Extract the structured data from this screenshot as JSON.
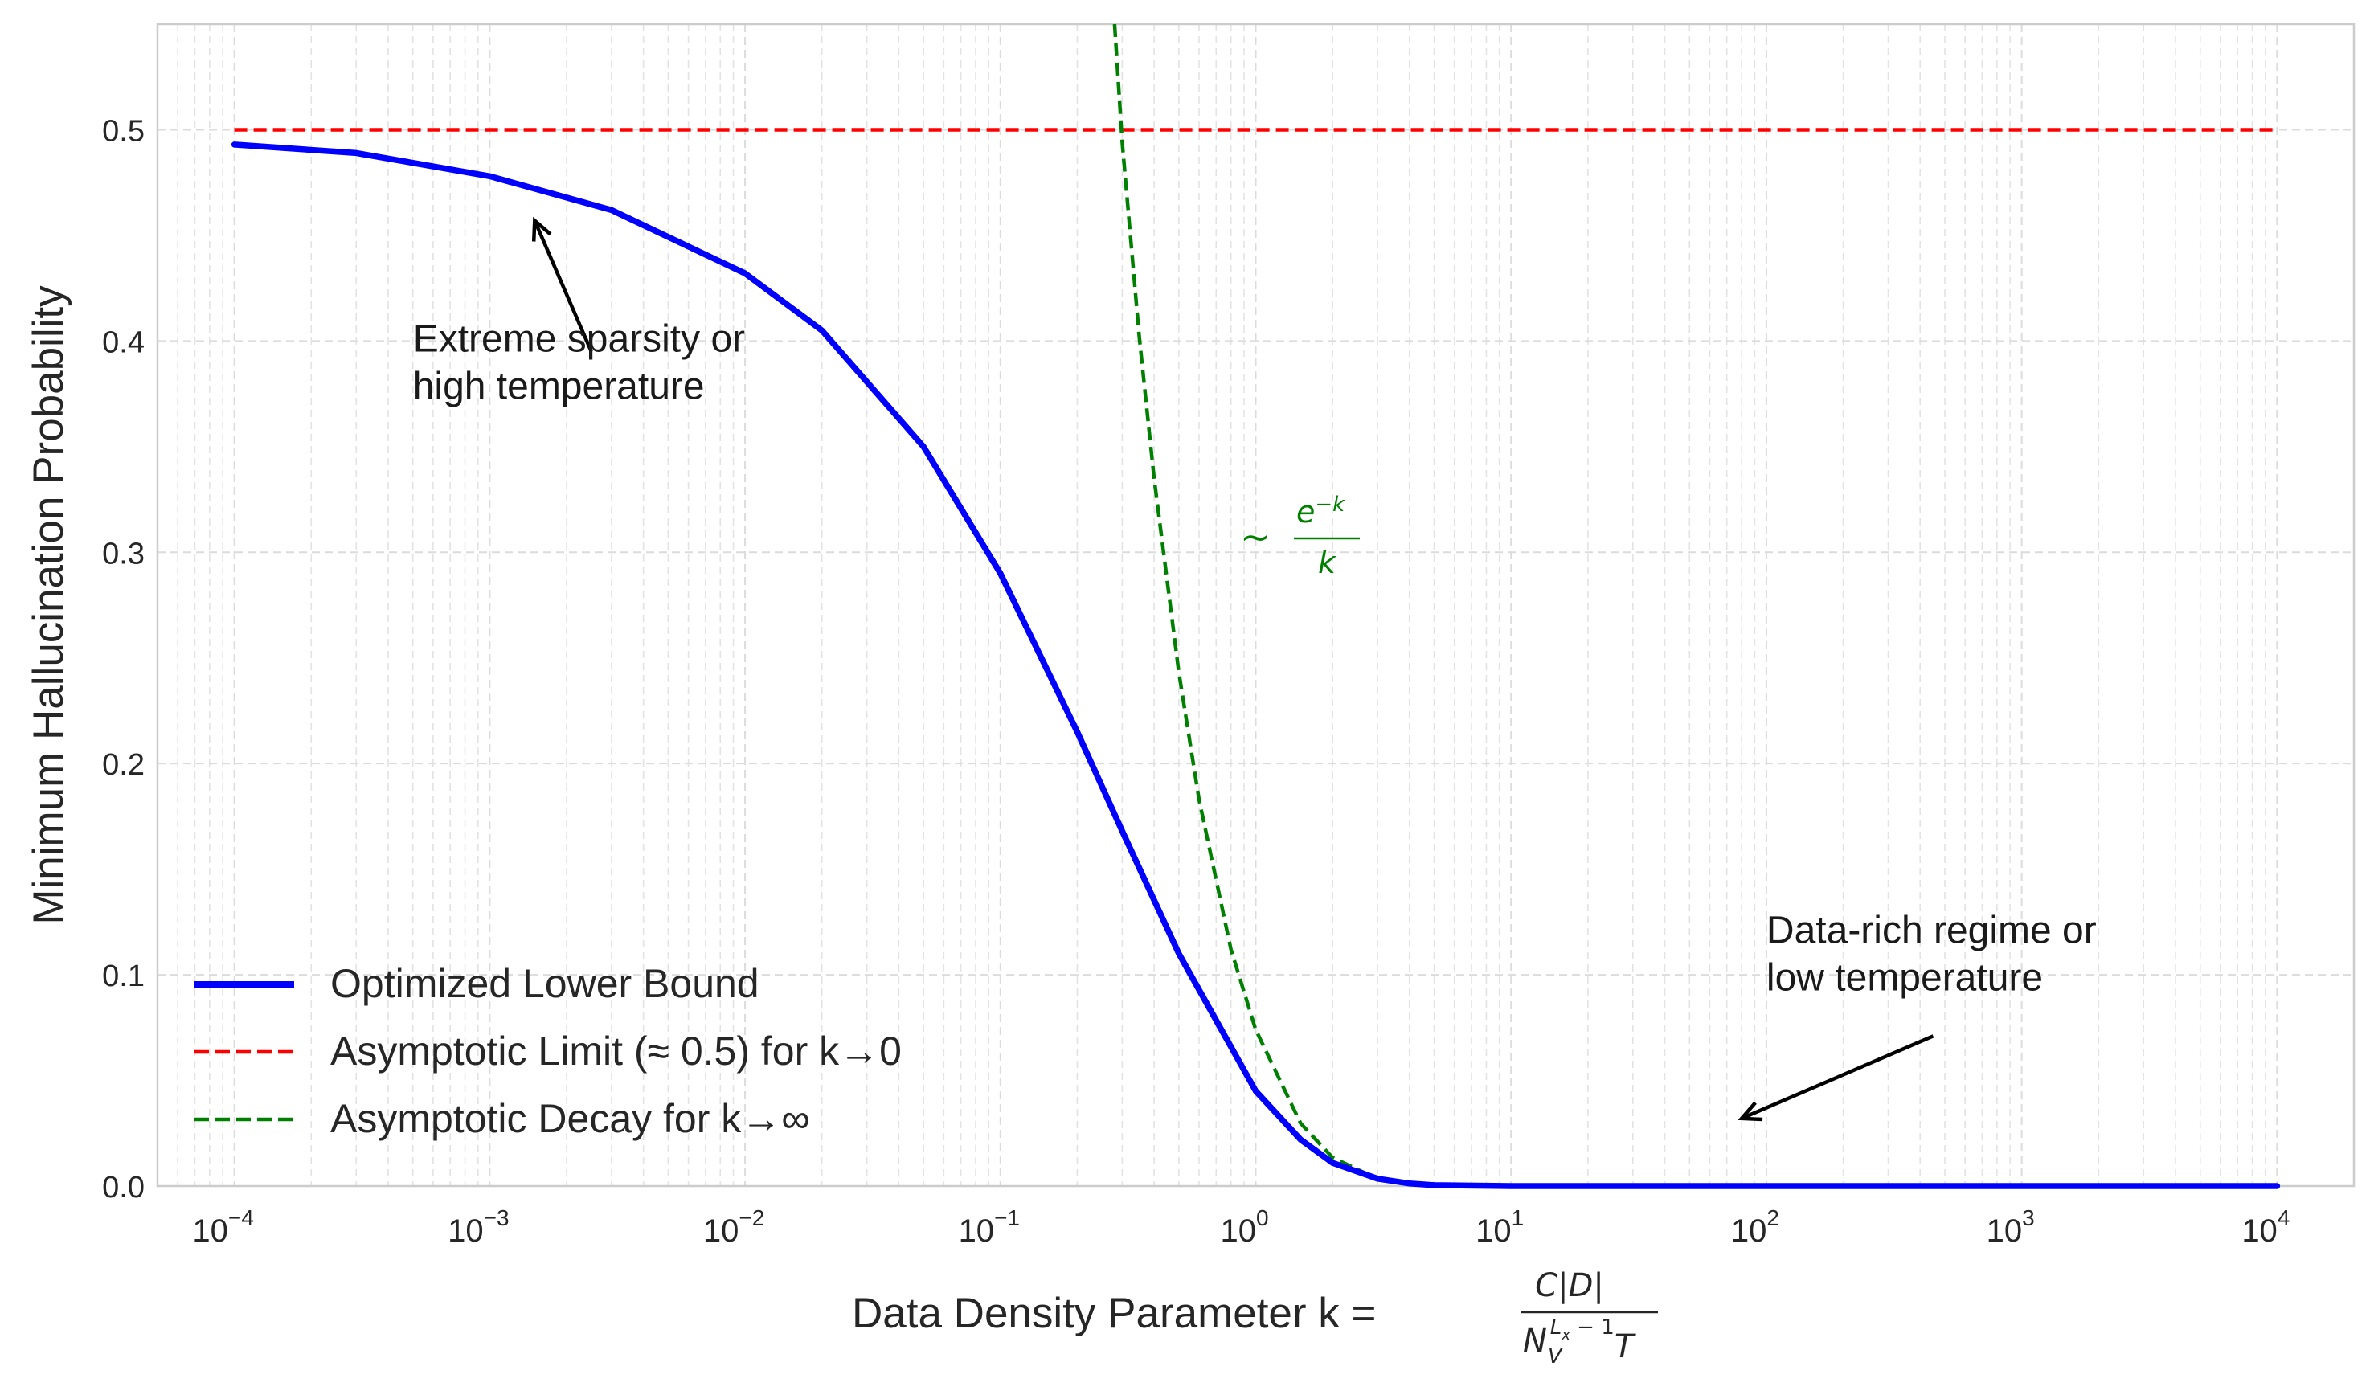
{
  "chart_data": {
    "type": "line",
    "xscale": "log",
    "xlim": [
      5e-05,
      20000
    ],
    "ylim": [
      0.0,
      0.55
    ],
    "grid": true,
    "legend_position": "lower-left",
    "xlabel": {
      "prefix": "Data Density Parameter k = ",
      "numerator": "C|D|",
      "denominator": {
        "base": "N",
        "sub": "V",
        "sup_main": "L",
        "sup_sub": "x",
        "sup_rest": " − 1",
        "tail": "T"
      }
    },
    "ylabel": "Minimum Hallucination Probability",
    "x_ticks": [
      {
        "value": 0.0001,
        "base": "10",
        "exp": "−4"
      },
      {
        "value": 0.001,
        "base": "10",
        "exp": "−3"
      },
      {
        "value": 0.01,
        "base": "10",
        "exp": "−2"
      },
      {
        "value": 0.1,
        "base": "10",
        "exp": "−1"
      },
      {
        "value": 1,
        "base": "10",
        "exp": "0"
      },
      {
        "value": 10,
        "base": "10",
        "exp": "1"
      },
      {
        "value": 100,
        "base": "10",
        "exp": "2"
      },
      {
        "value": 1000,
        "base": "10",
        "exp": "3"
      },
      {
        "value": 10000,
        "base": "10",
        "exp": "4"
      }
    ],
    "y_ticks": [
      {
        "value": 0.0,
        "label": "0.0"
      },
      {
        "value": 0.1,
        "label": "0.1"
      },
      {
        "value": 0.2,
        "label": "0.2"
      },
      {
        "value": 0.3,
        "label": "0.3"
      },
      {
        "value": 0.4,
        "label": "0.4"
      },
      {
        "value": 0.5,
        "label": "0.5"
      }
    ],
    "series": [
      {
        "name": "Optimized Lower Bound",
        "color": "#0000ff",
        "style": "solid",
        "x": [
          0.0001,
          0.0003,
          0.001,
          0.003,
          0.01,
          0.02,
          0.05,
          0.1,
          0.2,
          0.3,
          0.5,
          1,
          1.5,
          2,
          3,
          4,
          5,
          10,
          100,
          1000,
          10000
        ],
        "y": [
          0.493,
          0.489,
          0.478,
          0.462,
          0.432,
          0.405,
          0.35,
          0.29,
          0.215,
          0.168,
          0.11,
          0.045,
          0.022,
          0.011,
          0.0035,
          0.0012,
          0.0004,
          0.0,
          0.0,
          0.0,
          0.0
        ]
      },
      {
        "name": "Asymptotic Limit (≈ 0.5) for k→0",
        "color": "#ff0000",
        "style": "dashed",
        "x": [
          0.0001,
          10000
        ],
        "y": [
          0.5,
          0.5
        ]
      },
      {
        "name": "Asymptotic Decay for k→∞",
        "color": "#008000",
        "style": "dashed",
        "x": [
          0.28,
          0.3,
          0.35,
          0.4,
          0.5,
          0.6,
          0.8,
          1,
          1.5,
          2,
          3,
          4,
          5
        ],
        "y": [
          0.55,
          0.494,
          0.402,
          0.335,
          0.243,
          0.183,
          0.112,
          0.074,
          0.0297,
          0.0135,
          0.0033,
          0.0009,
          0.0003
        ]
      }
    ],
    "annotations": [
      {
        "id": "sparsity",
        "lines": [
          "Extreme sparsity or",
          "high temperature"
        ],
        "text_x": 0.0005,
        "text_y": 0.395,
        "arrow_from": [
          0.0025,
          0.395
        ],
        "arrow_to": [
          0.0015,
          0.457
        ]
      },
      {
        "id": "datarich",
        "lines": [
          "Data-rich regime or",
          "low temperature"
        ],
        "text_x": 100,
        "text_y": 0.115,
        "arrow_from": [
          450,
          0.071
        ],
        "arrow_to": [
          80,
          0.032
        ]
      }
    ],
    "formula_label": {
      "prefix": "∼",
      "numerator_base": "e",
      "numerator_exp": "−k",
      "denominator": "k",
      "color": "#008000",
      "x": 0.9,
      "y": 0.31
    }
  }
}
